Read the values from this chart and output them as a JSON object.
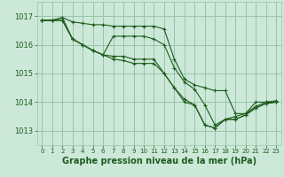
{
  "background_color": "#cce8d8",
  "grid_color": "#99c4aa",
  "line_color": "#1e5c1e",
  "xlabel": "Graphe pression niveau de la mer (hPa)",
  "xlabel_fontsize": 7,
  "ylim": [
    1012.5,
    1017.5
  ],
  "xlim": [
    -0.5,
    23.5
  ],
  "yticks": [
    1013,
    1014,
    1015,
    1016,
    1017
  ],
  "xticks": [
    0,
    1,
    2,
    3,
    4,
    5,
    6,
    7,
    8,
    9,
    10,
    11,
    12,
    13,
    14,
    15,
    16,
    17,
    18,
    19,
    20,
    21,
    22,
    23
  ],
  "series": [
    [
      1016.85,
      1016.85,
      1016.95,
      1016.2,
      1016.0,
      1015.8,
      1015.65,
      1016.3,
      1016.3,
      1016.3,
      1016.3,
      1016.2,
      1016.0,
      1015.2,
      1014.7,
      1014.45,
      1013.9,
      1013.2,
      1013.4,
      1013.5,
      1013.6,
      1013.85,
      1014.0,
      1014.0
    ],
    [
      1016.85,
      1016.85,
      1016.95,
      1016.8,
      1016.75,
      1016.7,
      1016.7,
      1016.65,
      1016.65,
      1016.65,
      1016.65,
      1016.65,
      1016.55,
      1015.5,
      1014.8,
      1014.6,
      1014.5,
      1014.4,
      1014.4,
      1013.6,
      1013.6,
      1014.0,
      1014.0,
      1014.05
    ],
    [
      1016.85,
      1016.85,
      1016.85,
      1016.2,
      1016.0,
      1015.8,
      1015.65,
      1015.5,
      1015.45,
      1015.35,
      1015.35,
      1015.35,
      1015.0,
      1014.5,
      1014.0,
      1013.9,
      1013.2,
      1013.1,
      1013.4,
      1013.4,
      1013.55,
      1013.8,
      1013.95,
      1014.0
    ],
    [
      1016.85,
      1016.85,
      1016.85,
      1016.2,
      1016.0,
      1015.8,
      1015.65,
      1015.6,
      1015.6,
      1015.5,
      1015.5,
      1015.5,
      1015.0,
      1014.5,
      1014.1,
      1013.9,
      1013.2,
      1013.1,
      1013.4,
      1013.4,
      1013.55,
      1013.8,
      1013.95,
      1014.0
    ]
  ]
}
